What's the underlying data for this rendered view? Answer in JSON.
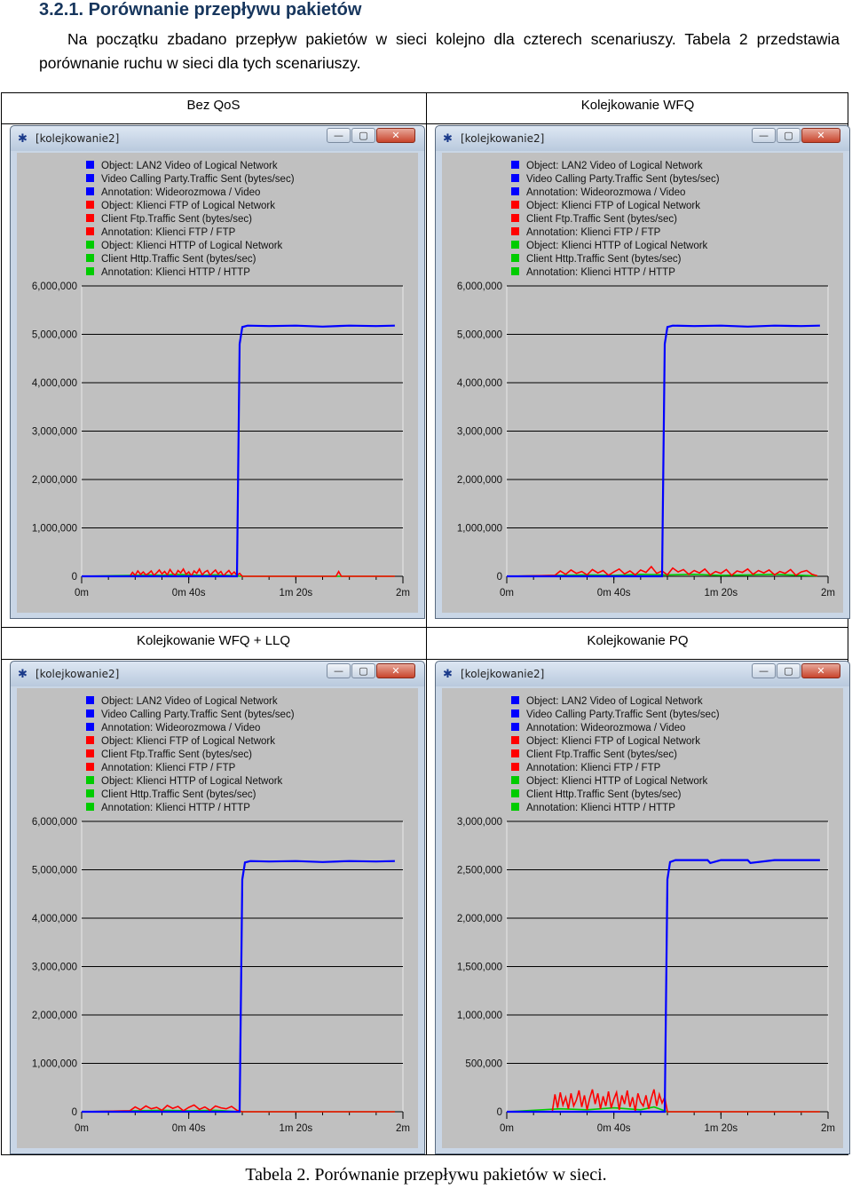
{
  "heading": "3.2.1. Porównanie przepływu pakietów",
  "paragraph": "Na początku zbadano przepływ pakietów w sieci kolejno dla czterech scenariuszy. Tabela 2 przedstawia porównanie ruchu w sieci dla tych scenariuszy.",
  "caption": "Tabela 2. Porównanie przepływu pakietów w sieci.",
  "colors": {
    "video": "#0000ff",
    "ftp": "#ff0000",
    "http": "#00cc00",
    "plot_bg": "#c0c0c0"
  },
  "window": {
    "title": "[kolejkowanie2]",
    "icon": "app-icon",
    "min_symbol": "—",
    "max_symbol": "▢",
    "close_symbol": "✕"
  },
  "legend": [
    {
      "text": "Object: LAN2 Video of Logical Network",
      "color": "#0000ff"
    },
    {
      "text": "Video Calling Party.Traffic Sent (bytes/sec)",
      "color": "#0000ff"
    },
    {
      "text": "Annotation: Wideorozmowa / Video",
      "color": "#0000ff"
    },
    {
      "text": "Object: Klienci FTP of Logical Network",
      "color": "#ff0000"
    },
    {
      "text": "Client Ftp.Traffic Sent (bytes/sec)",
      "color": "#ff0000"
    },
    {
      "text": "Annotation: Klienci FTP / FTP",
      "color": "#ff0000"
    },
    {
      "text": "Object: Klienci HTTP of Logical Network",
      "color": "#00cc00"
    },
    {
      "text": "Client Http.Traffic Sent (bytes/sec)",
      "color": "#00cc00"
    },
    {
      "text": "Annotation: Klienci HTTP / HTTP",
      "color": "#00cc00"
    }
  ],
  "panels": [
    {
      "header": "Bez QoS"
    },
    {
      "header": "Kolejkowanie WFQ"
    },
    {
      "header": "Kolejkowanie WFQ + LLQ"
    },
    {
      "header": "Kolejkowanie PQ"
    }
  ],
  "chart_data": [
    {
      "type": "line",
      "title": "Bez QoS",
      "x_ticks": [
        "0m",
        "0m 40s",
        "1m 20s",
        "2m"
      ],
      "xlim": [
        0,
        120
      ],
      "y_ticks": [
        "0",
        "1,000,000",
        "2,000,000",
        "3,000,000",
        "4,000,000",
        "5,000,000",
        "6,000,000"
      ],
      "ylim": [
        0,
        6000000
      ],
      "series": [
        {
          "name": "Video Calling Party.Traffic Sent (bytes/sec)",
          "color": "#0000ff",
          "x": [
            0,
            58,
            59,
            60,
            62,
            70,
            80,
            90,
            100,
            110,
            117
          ],
          "values": [
            0,
            0,
            4800000,
            5150000,
            5180000,
            5170000,
            5180000,
            5160000,
            5180000,
            5170000,
            5180000
          ]
        },
        {
          "name": "Client Ftp.Traffic Sent (bytes/sec)",
          "color": "#ff0000",
          "x": [
            0,
            18,
            19,
            20,
            21,
            22,
            23,
            24,
            25,
            26,
            27,
            28,
            29,
            30,
            31,
            32,
            33,
            34,
            35,
            36,
            37,
            38,
            39,
            40,
            41,
            42,
            43,
            44,
            45,
            46,
            47,
            48,
            49,
            50,
            51,
            52,
            53,
            54,
            55,
            56,
            57,
            58,
            59,
            60,
            95,
            96,
            97,
            98,
            117
          ],
          "values": [
            0,
            0,
            80000,
            20000,
            110000,
            40000,
            90000,
            30000,
            60000,
            110000,
            20000,
            70000,
            130000,
            50000,
            100000,
            30000,
            140000,
            60000,
            20000,
            120000,
            70000,
            150000,
            40000,
            90000,
            10000,
            110000,
            60000,
            150000,
            30000,
            90000,
            120000,
            20000,
            80000,
            130000,
            50000,
            100000,
            10000,
            70000,
            120000,
            40000,
            90000,
            20000,
            60000,
            0,
            0,
            100000,
            0,
            0,
            0
          ]
        },
        {
          "name": "Client Http.Traffic Sent (bytes/sec)",
          "color": "#00cc00",
          "x": [
            0,
            20,
            25,
            30,
            35,
            40,
            45,
            50,
            55,
            60,
            117
          ],
          "values": [
            0,
            20000,
            30000,
            20000,
            40000,
            30000,
            20000,
            30000,
            20000,
            0,
            0
          ]
        }
      ]
    },
    {
      "type": "line",
      "title": "Kolejkowanie WFQ",
      "x_ticks": [
        "0m",
        "0m 40s",
        "1m 20s",
        "2m"
      ],
      "xlim": [
        0,
        120
      ],
      "y_ticks": [
        "0",
        "1,000,000",
        "2,000,000",
        "3,000,000",
        "4,000,000",
        "5,000,000",
        "6,000,000"
      ],
      "ylim": [
        0,
        6000000
      ],
      "series": [
        {
          "name": "Video Calling Party.Traffic Sent (bytes/sec)",
          "color": "#0000ff",
          "x": [
            0,
            58,
            59,
            60,
            62,
            70,
            80,
            90,
            100,
            110,
            117
          ],
          "values": [
            0,
            0,
            4800000,
            5150000,
            5180000,
            5170000,
            5180000,
            5160000,
            5180000,
            5170000,
            5180000
          ]
        },
        {
          "name": "Client Ftp.Traffic Sent (bytes/sec)",
          "color": "#ff0000",
          "x": [
            0,
            18,
            20,
            22,
            24,
            26,
            28,
            30,
            32,
            34,
            36,
            38,
            40,
            42,
            44,
            46,
            48,
            50,
            52,
            54,
            56,
            58,
            60,
            62,
            64,
            66,
            68,
            70,
            72,
            74,
            76,
            78,
            80,
            82,
            84,
            86,
            88,
            90,
            92,
            94,
            96,
            98,
            100,
            102,
            104,
            106,
            108,
            110,
            112,
            114,
            116
          ],
          "values": [
            0,
            20000,
            110000,
            40000,
            130000,
            60000,
            100000,
            30000,
            140000,
            70000,
            120000,
            20000,
            90000,
            150000,
            50000,
            110000,
            30000,
            130000,
            80000,
            200000,
            60000,
            110000,
            30000,
            170000,
            90000,
            140000,
            40000,
            120000,
            70000,
            150000,
            30000,
            100000,
            60000,
            140000,
            20000,
            110000,
            80000,
            150000,
            40000,
            120000,
            70000,
            130000,
            30000,
            100000,
            60000,
            140000,
            20000,
            90000,
            120000,
            40000,
            10000
          ]
        },
        {
          "name": "Client Http.Traffic Sent (bytes/sec)",
          "color": "#00cc00",
          "x": [
            0,
            20,
            30,
            40,
            50,
            60,
            70,
            80,
            90,
            100,
            110,
            116
          ],
          "values": [
            0,
            20000,
            30000,
            20000,
            40000,
            30000,
            40000,
            20000,
            30000,
            40000,
            20000,
            10000
          ]
        }
      ]
    },
    {
      "type": "line",
      "title": "Kolejkowanie WFQ + LLQ",
      "x_ticks": [
        "0m",
        "0m 40s",
        "1m 20s",
        "2m"
      ],
      "xlim": [
        0,
        120
      ],
      "y_ticks": [
        "0",
        "1,000,000",
        "2,000,000",
        "3,000,000",
        "4,000,000",
        "5,000,000",
        "6,000,000"
      ],
      "ylim": [
        0,
        6000000
      ],
      "series": [
        {
          "name": "Video Calling Party.Traffic Sent (bytes/sec)",
          "color": "#0000ff",
          "x": [
            0,
            59,
            60,
            61,
            63,
            70,
            80,
            90,
            100,
            110,
            117
          ],
          "values": [
            0,
            0,
            4800000,
            5150000,
            5180000,
            5170000,
            5180000,
            5160000,
            5180000,
            5170000,
            5180000
          ]
        },
        {
          "name": "Client Ftp.Traffic Sent (bytes/sec)",
          "color": "#ff0000",
          "x": [
            0,
            18,
            20,
            22,
            24,
            26,
            28,
            30,
            32,
            34,
            36,
            38,
            40,
            42,
            44,
            46,
            48,
            50,
            52,
            54,
            56,
            58,
            60,
            117
          ],
          "values": [
            0,
            20000,
            100000,
            40000,
            120000,
            60000,
            90000,
            30000,
            130000,
            70000,
            110000,
            20000,
            90000,
            140000,
            50000,
            100000,
            30000,
            120000,
            80000,
            60000,
            110000,
            30000,
            0,
            0
          ]
        },
        {
          "name": "Client Http.Traffic Sent (bytes/sec)",
          "color": "#00cc00",
          "x": [
            0,
            20,
            30,
            40,
            50,
            60,
            117
          ],
          "values": [
            0,
            20000,
            30000,
            20000,
            30000,
            0,
            0
          ]
        }
      ]
    },
    {
      "type": "line",
      "title": "Kolejkowanie PQ",
      "x_ticks": [
        "0m",
        "0m 40s",
        "1m 20s",
        "2m"
      ],
      "xlim": [
        0,
        120
      ],
      "y_ticks": [
        "0",
        "500,000",
        "1,000,000",
        "1,500,000",
        "2,000,000",
        "2,500,000",
        "3,000,000"
      ],
      "ylim": [
        0,
        3000000
      ],
      "series": [
        {
          "name": "Video Calling Party.Traffic Sent (bytes/sec)",
          "color": "#0000ff",
          "x": [
            0,
            59,
            60,
            61,
            63,
            70,
            75,
            76,
            80,
            90,
            91,
            100,
            110,
            117
          ],
          "values": [
            0,
            0,
            2400000,
            2580000,
            2600000,
            2600000,
            2600000,
            2570000,
            2600000,
            2600000,
            2570000,
            2600000,
            2600000,
            2600000
          ]
        },
        {
          "name": "Client Ftp.Traffic Sent (bytes/sec)",
          "color": "#ff0000",
          "x": [
            0,
            17,
            18,
            19,
            20,
            21,
            22,
            23,
            24,
            25,
            26,
            27,
            28,
            29,
            30,
            31,
            32,
            33,
            34,
            35,
            36,
            37,
            38,
            39,
            40,
            41,
            42,
            43,
            44,
            45,
            46,
            47,
            48,
            49,
            50,
            51,
            52,
            53,
            54,
            55,
            56,
            57,
            58,
            59,
            60,
            117
          ],
          "values": [
            0,
            0,
            180000,
            40000,
            200000,
            70000,
            150000,
            30000,
            190000,
            60000,
            120000,
            220000,
            50000,
            170000,
            20000,
            140000,
            230000,
            80000,
            190000,
            30000,
            160000,
            60000,
            210000,
            40000,
            130000,
            200000,
            20000,
            170000,
            80000,
            220000,
            50000,
            150000,
            10000,
            190000,
            100000,
            60000,
            170000,
            30000,
            140000,
            230000,
            60000,
            180000,
            90000,
            150000,
            0,
            0
          ]
        },
        {
          "name": "Client Http.Traffic Sent (bytes/sec)",
          "color": "#00cc00",
          "x": [
            0,
            20,
            30,
            40,
            50,
            55,
            60,
            117
          ],
          "values": [
            0,
            30000,
            20000,
            40000,
            20000,
            50000,
            0,
            0
          ]
        }
      ]
    }
  ]
}
